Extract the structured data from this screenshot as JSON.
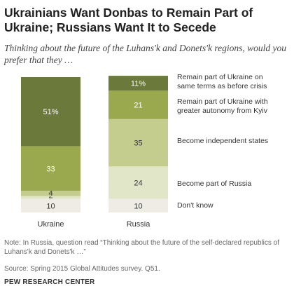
{
  "title": "Ukrainians Want Donbas to Remain Part of Ukraine; Russians Want It to Secede",
  "subtitle": "Thinking about the future of the Luhans'k and Donets'k regions, would you prefer that they …",
  "colors": {
    "remain_same": "#6b7a3a",
    "remain_autonomy": "#9aa94e",
    "independent": "#c4cc8e",
    "russia": "#e2e6c8",
    "dont_know": "#eeece4",
    "label_dark": "#ffffff",
    "label_light": "#333333"
  },
  "chart_data": {
    "type": "bar",
    "stacked": true,
    "orientation": "vertical",
    "categories": [
      "Ukraine",
      "Russia"
    ],
    "series": [
      {
        "name": "Don't know",
        "values": [
          10,
          10
        ],
        "labels": [
          "10",
          "10"
        ]
      },
      {
        "name": "Become part of Russia",
        "values": [
          2,
          24
        ],
        "labels": [
          "2",
          "24"
        ]
      },
      {
        "name": "Become independent states",
        "values": [
          4,
          35
        ],
        "labels": [
          "4",
          "35"
        ]
      },
      {
        "name": "Remain part of Ukraine with greater autonomy from Kyiv",
        "values": [
          33,
          21
        ],
        "labels": [
          "33",
          "21"
        ]
      },
      {
        "name": "Remain part of Ukraine on same terms as before crisis",
        "values": [
          51,
          11
        ],
        "labels": [
          "51%",
          "11%"
        ]
      }
    ],
    "legend_position": "right",
    "legend_lines": [
      [
        "Don't know"
      ],
      [
        "Become part of Russia"
      ],
      [
        "Become independent states"
      ],
      [
        "Remain part of Ukraine with",
        "greater autonomy from Kyiv"
      ],
      [
        "Remain part of Ukraine on",
        "same terms as before crisis"
      ]
    ]
  },
  "footer": {
    "note": "Note: In Russia, question read “Thinking about the future of the self-declared republics of Luhans'k and Donets'k …”",
    "source": "Source: Spring 2015 Global Attitudes survey. Q51.",
    "org": "PEW RESEARCH CENTER"
  }
}
